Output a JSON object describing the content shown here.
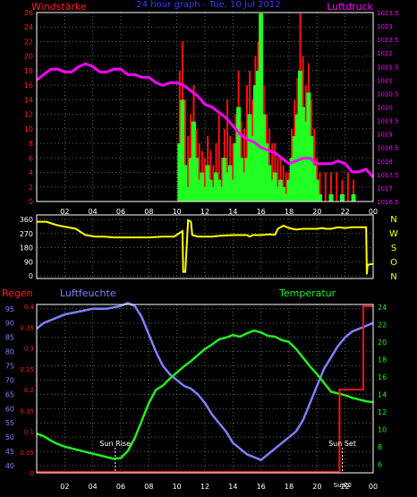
{
  "colors": {
    "background": "#000000",
    "frame": "#ffffff",
    "grid": "#6a6a6a",
    "wind_axis": "#ff2020",
    "pressure_axis": "#ff00ff",
    "title": "#3a3aff",
    "gust": "#ff1010",
    "wind": "#22ff22",
    "pressure": "#ff00ff",
    "direction": "#ffff00",
    "compass": "#ffff00",
    "rain_axis": "#ff2020",
    "humidity": "#8080ff",
    "temperature": "#22ee22",
    "rain": "#ff1010",
    "sun_label": "#ffffff"
  },
  "chart_data": [
    {
      "type": "bar",
      "title": "24 hour graph - Tue, 10 Jul 2012",
      "left_label": "Windstärke",
      "right_label": "Luftdruck",
      "x_ticks": [
        "02",
        "04",
        "06",
        "08",
        "10",
        "12",
        "14",
        "16",
        "18",
        "20",
        "22",
        "00"
      ],
      "left_ticks": [
        "0",
        "2",
        "4",
        "6",
        "8",
        "10",
        "12",
        "14",
        "16",
        "18",
        "20",
        "22",
        "24",
        "26"
      ],
      "right_ticks": [
        "1016.5",
        "1017",
        "1017.5",
        "1018",
        "1018.5",
        "1019",
        "1019.5",
        "1020",
        "1020.5",
        "1021",
        "1021.5",
        "1022",
        "1022.5",
        "1023",
        "1023.5"
      ],
      "ylim": [
        0,
        26
      ],
      "pressure_range": [
        1016.5,
        1023.5
      ],
      "grid": true,
      "pressure_series": {
        "hours": [
          0,
          0.5,
          1,
          1.5,
          2,
          2.5,
          3,
          3.5,
          4,
          4.5,
          5,
          5.5,
          6,
          6.5,
          7,
          7.5,
          8,
          8.5,
          9,
          9.5,
          10,
          10.5,
          11,
          11.5,
          12,
          12.5,
          13,
          13.5,
          14,
          14.5,
          15,
          15.5,
          16,
          16.5,
          17,
          17.5,
          18,
          18.5,
          19,
          19.5,
          20,
          20.5,
          21,
          21.5,
          22,
          22.5,
          23,
          23.5,
          24
        ],
        "values": [
          1021.0,
          1021.2,
          1021.4,
          1021.4,
          1021.3,
          1021.3,
          1021.5,
          1021.6,
          1021.5,
          1021.3,
          1021.3,
          1021.4,
          1021.4,
          1021.2,
          1021.2,
          1021.1,
          1021.1,
          1020.9,
          1020.8,
          1020.9,
          1020.9,
          1020.8,
          1020.6,
          1020.4,
          1020.1,
          1020.0,
          1019.8,
          1019.6,
          1019.3,
          1019.0,
          1018.8,
          1018.7,
          1018.5,
          1018.4,
          1018.3,
          1018.1,
          1017.9,
          1018.0,
          1018.1,
          1018.1,
          1017.9,
          1017.9,
          1017.9,
          1018.0,
          1017.9,
          1017.6,
          1017.6,
          1017.7,
          1017.4
        ]
      },
      "wind_bars": [
        {
          "h": 10.2,
          "wind": 8,
          "gust": 18
        },
        {
          "h": 10.4,
          "wind": 14,
          "gust": 22
        },
        {
          "h": 10.6,
          "wind": 5,
          "gust": 14
        },
        {
          "h": 10.8,
          "wind": 2,
          "gust": 9
        },
        {
          "h": 11.0,
          "wind": 6,
          "gust": 12
        },
        {
          "h": 11.2,
          "wind": 11,
          "gust": 16
        },
        {
          "h": 11.4,
          "wind": 6,
          "gust": 10
        },
        {
          "h": 11.6,
          "wind": 3,
          "gust": 8
        },
        {
          "h": 11.8,
          "wind": 4,
          "gust": 7
        },
        {
          "h": 12.0,
          "wind": 2,
          "gust": 6
        },
        {
          "h": 12.2,
          "wind": 5,
          "gust": 9
        },
        {
          "h": 12.4,
          "wind": 3,
          "gust": 7
        },
        {
          "h": 12.6,
          "wind": 2,
          "gust": 5
        },
        {
          "h": 12.8,
          "wind": 4,
          "gust": 8
        },
        {
          "h": 13.0,
          "wind": 3,
          "gust": 12
        },
        {
          "h": 13.2,
          "wind": 2,
          "gust": 6
        },
        {
          "h": 13.4,
          "wind": 6,
          "gust": 10
        },
        {
          "h": 13.6,
          "wind": 4,
          "gust": 14
        },
        {
          "h": 13.8,
          "wind": 5,
          "gust": 9
        },
        {
          "h": 14.0,
          "wind": 3,
          "gust": 8
        },
        {
          "h": 14.2,
          "wind": 8,
          "gust": 12
        },
        {
          "h": 14.4,
          "wind": 13,
          "gust": 18
        },
        {
          "h": 14.6,
          "wind": 6,
          "gust": 11
        },
        {
          "h": 14.8,
          "wind": 4,
          "gust": 10
        },
        {
          "h": 15.0,
          "wind": 6,
          "gust": 16
        },
        {
          "h": 15.2,
          "wind": 12,
          "gust": 18
        },
        {
          "h": 15.4,
          "wind": 9,
          "gust": 14
        },
        {
          "h": 15.6,
          "wind": 16,
          "gust": 20
        },
        {
          "h": 15.8,
          "wind": 18,
          "gust": 22
        },
        {
          "h": 16.0,
          "wind": 26,
          "gust": 25
        },
        {
          "h": 16.2,
          "wind": 12,
          "gust": 16
        },
        {
          "h": 16.4,
          "wind": 8,
          "gust": 12
        },
        {
          "h": 16.6,
          "wind": 5,
          "gust": 10
        },
        {
          "h": 16.8,
          "wind": 3,
          "gust": 8
        },
        {
          "h": 17.0,
          "wind": 4,
          "gust": 8
        },
        {
          "h": 17.2,
          "wind": 2,
          "gust": 6
        },
        {
          "h": 17.4,
          "wind": 3,
          "gust": 6
        },
        {
          "h": 17.6,
          "wind": 2,
          "gust": 5
        },
        {
          "h": 17.8,
          "wind": 1,
          "gust": 4
        },
        {
          "h": 18.0,
          "wind": 3,
          "gust": 4
        },
        {
          "h": 18.2,
          "wind": 6,
          "gust": 10
        },
        {
          "h": 18.4,
          "wind": 9,
          "gust": 14
        },
        {
          "h": 18.6,
          "wind": 12,
          "gust": 17
        },
        {
          "h": 18.8,
          "wind": 18,
          "gust": 26
        },
        {
          "h": 19.0,
          "wind": 13,
          "gust": 20
        },
        {
          "h": 19.2,
          "wind": 11,
          "gust": 16
        },
        {
          "h": 19.4,
          "wind": 15,
          "gust": 19
        },
        {
          "h": 19.6,
          "wind": 9,
          "gust": 14
        },
        {
          "h": 19.8,
          "wind": 5,
          "gust": 10
        },
        {
          "h": 20.0,
          "wind": 3,
          "gust": 6
        },
        {
          "h": 20.2,
          "wind": 1,
          "gust": 4
        },
        {
          "h": 20.6,
          "wind": 0,
          "gust": 4
        },
        {
          "h": 21.0,
          "wind": 1,
          "gust": 4
        },
        {
          "h": 21.4,
          "wind": 0,
          "gust": 4
        },
        {
          "h": 21.8,
          "wind": 1,
          "gust": 3
        },
        {
          "h": 22.2,
          "wind": 0,
          "gust": 4
        },
        {
          "h": 22.6,
          "wind": 1,
          "gust": 3
        }
      ]
    },
    {
      "type": "line",
      "y_ticks": [
        "0",
        "90",
        "180",
        "270",
        "360"
      ],
      "compass_labels": [
        "N",
        "W",
        "S",
        "O",
        "N"
      ],
      "ylim": [
        0,
        360
      ],
      "grid": true,
      "direction_series": {
        "hours": [
          0,
          0.7,
          1.2,
          1.6,
          2.2,
          2.8,
          3.3,
          3.5,
          4.2,
          4.8,
          5.5,
          6.0,
          7,
          8,
          9,
          9.7,
          9.8,
          10.4,
          10.45,
          10.6,
          10.8,
          11.0,
          11.1,
          11.5,
          12,
          12.4,
          12.5,
          13,
          14,
          15,
          15.2,
          15.4,
          16,
          16.6,
          17,
          17.2,
          17.6,
          18,
          18.5,
          19,
          19.5,
          20,
          20.4,
          20.6,
          21,
          21.5,
          22,
          22.5,
          23,
          23.5,
          23.55,
          23.6,
          23.9,
          24
        ],
        "values": [
          345,
          345,
          330,
          320,
          310,
          300,
          270,
          260,
          250,
          250,
          245,
          245,
          245,
          245,
          250,
          250,
          250,
          285,
          25,
          25,
          355,
          345,
          260,
          250,
          250,
          250,
          250,
          255,
          260,
          260,
          250,
          260,
          260,
          265,
          262,
          300,
          320,
          305,
          295,
          300,
          300,
          300,
          305,
          300,
          300,
          310,
          305,
          310,
          310,
          310,
          10,
          70,
          75,
          75
        ]
      }
    },
    {
      "type": "line",
      "rain_label": "Regen",
      "humidity_label": "Luftfeuchte",
      "temperature_label": "Temperatur",
      "x_ticks": [
        "02",
        "04",
        "06",
        "08",
        "10",
        "12",
        "14",
        "16",
        "18",
        "20",
        "22",
        "00"
      ],
      "humidity_ticks": [
        "40",
        "45",
        "50",
        "55",
        "60",
        "65",
        "70",
        "75",
        "80",
        "85",
        "90",
        "95"
      ],
      "rain_ticks": [
        "0",
        "0.05",
        "0.1",
        "0.15",
        "0.2",
        "0.25",
        "0.3",
        "0.35",
        "0.4"
      ],
      "temperature_ticks": [
        "6",
        "8",
        "10",
        "12",
        "14",
        "16",
        "18",
        "20",
        "22",
        "24"
      ],
      "humidity_range": [
        37.5,
        96.5
      ],
      "rain_range": [
        0,
        0.4
      ],
      "temperature_range": [
        5,
        24.3
      ],
      "grid": true,
      "sun_rise": {
        "label": "Sun Rise",
        "hour": 5.6
      },
      "sun_set": {
        "label": "Sun Set",
        "hour": 21.8
      },
      "extra_ticks": [
        {
          "label": "Sun",
          "hour": 21.6
        },
        {
          "label": "22",
          "hour": 22.2
        }
      ],
      "humidity_series": {
        "hours": [
          0,
          0.5,
          1,
          1.5,
          2,
          3,
          4,
          5,
          6,
          6.5,
          7,
          7.5,
          8,
          8.5,
          9,
          9.5,
          10,
          10.5,
          11,
          11.5,
          12,
          12.5,
          13,
          13.5,
          14,
          14.5,
          15,
          15.5,
          16,
          16.5,
          17,
          17.5,
          18,
          18.5,
          19,
          19.5,
          20,
          20.5,
          21,
          21.5,
          22,
          22.5,
          23,
          23.5,
          24
        ],
        "values": [
          88,
          90,
          91,
          92,
          93,
          94,
          95,
          95,
          96,
          97,
          96,
          92,
          86,
          80,
          75,
          72,
          70,
          68,
          67,
          65,
          62,
          58,
          55,
          52,
          48,
          46,
          44,
          43,
          42,
          44,
          46,
          48,
          50,
          52,
          56,
          62,
          68,
          74,
          78,
          82,
          85,
          87,
          88,
          89,
          90
        ]
      },
      "temperature_series": {
        "hours": [
          0,
          0.5,
          1,
          1.5,
          2,
          3,
          4,
          5,
          5.5,
          6,
          6.5,
          7,
          7.5,
          8,
          8.5,
          9,
          9.5,
          10,
          10.5,
          11,
          11.5,
          12,
          12.5,
          13,
          13.5,
          14,
          14.5,
          15,
          15.5,
          16,
          16.5,
          17,
          17.5,
          18,
          18.5,
          19,
          19.5,
          20,
          20.5,
          21,
          21.5,
          22,
          22.5,
          23,
          23.5,
          24
        ],
        "values": [
          9.5,
          9.2,
          8.7,
          8.3,
          8.0,
          7.6,
          7.2,
          6.8,
          6.6,
          6.7,
          7.5,
          9.0,
          11.0,
          13.0,
          14.5,
          15.0,
          15.8,
          16.5,
          17.2,
          17.8,
          18.5,
          19.2,
          19.7,
          20.3,
          20.5,
          20.8,
          20.6,
          21.0,
          21.3,
          21.1,
          20.7,
          20.6,
          20.2,
          20.0,
          19.2,
          18.2,
          17.2,
          16.3,
          15.3,
          14.3,
          14.1,
          13.9,
          13.6,
          13.4,
          13.2,
          13.1
        ]
      },
      "rain_series": {
        "hours": [
          0,
          21.6,
          21.6,
          23.3,
          23.3,
          24
        ],
        "values": [
          0,
          0,
          0.2,
          0.2,
          0.4,
          0.4
        ]
      }
    }
  ]
}
